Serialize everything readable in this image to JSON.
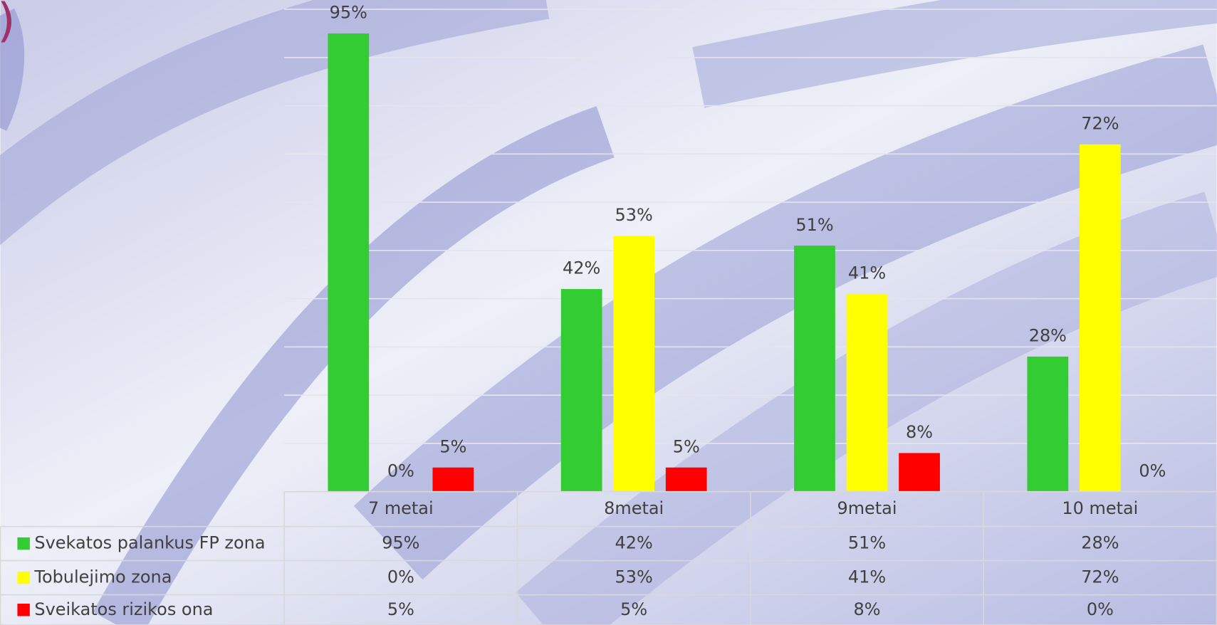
{
  "corner_text": ")",
  "chart_data": {
    "type": "bar",
    "categories": [
      "7 metai",
      "8metai",
      "9metai",
      "10 metai"
    ],
    "series": [
      {
        "name": "Svekatos palankus FP zona",
        "color": "#33cc33",
        "values": [
          95,
          42,
          51,
          28
        ],
        "value_labels": [
          "95%",
          "42%",
          "51%",
          "28%"
        ]
      },
      {
        "name": "Tobulejimo zona",
        "color": "#ffff00",
        "values": [
          0,
          53,
          41,
          72
        ],
        "value_labels": [
          "0%",
          "53%",
          "41%",
          "72%"
        ]
      },
      {
        "name": "Sveikatos rizikos ona",
        "color": "#ff0000",
        "values": [
          5,
          5,
          8,
          0
        ],
        "value_labels": [
          "5%",
          "5%",
          "8%",
          "0%"
        ]
      }
    ],
    "ylim": [
      0,
      100
    ],
    "yticks": [
      0,
      10,
      20,
      30,
      40,
      50,
      60,
      70,
      80,
      90,
      100
    ],
    "ytick_labels": false,
    "grid": true,
    "legend": "data-table"
  }
}
